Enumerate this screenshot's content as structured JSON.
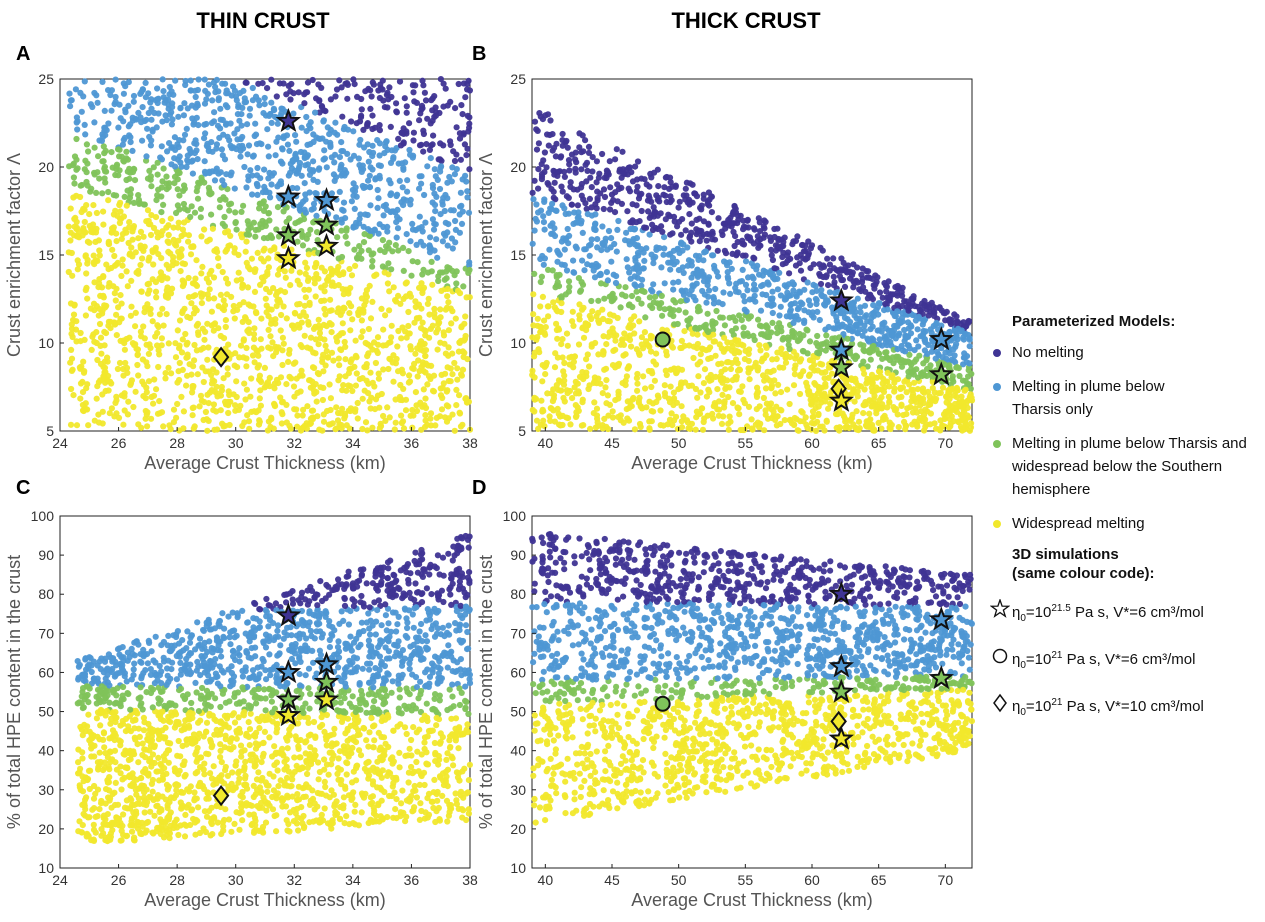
{
  "columns": {
    "left": "THIN CRUST",
    "right": "THICK CRUST"
  },
  "colors": {
    "no_melting": "#3f3494",
    "plume_only": "#4e97d4",
    "plume_and_south": "#7fc35a",
    "widespread": "#f1e82c"
  },
  "legend": {
    "models_title": "Parameterized Models:",
    "models": [
      {
        "label": "No melting",
        "color": "#3f3494"
      },
      {
        "label": "Melting in plume below Tharsis only",
        "color": "#4e97d4"
      },
      {
        "label": "Melting in plume below Tharsis and widespread below the Southern hemisphere",
        "color": "#7fc35a"
      },
      {
        "label": "Widespread melting",
        "color": "#f1e82c"
      }
    ],
    "sim_title_1": "3D simulations",
    "sim_title_2": "(same colour code):",
    "sims": [
      {
        "symbol": "star-icon",
        "eta_sub": "0",
        "eta_exp": "21.5",
        "rest": " Pa s, V*=6 cm³/mol"
      },
      {
        "symbol": "circle-icon",
        "eta_sub": "0",
        "eta_exp": "21",
        "rest": " Pa s, V*=6 cm³/mol"
      },
      {
        "symbol": "diamond-icon",
        "eta_sub": "0",
        "eta_exp": "21",
        "rest": " Pa s, V*=10 cm³/mol"
      }
    ]
  },
  "chart_data": [
    {
      "panel": "A",
      "type": "scatter",
      "xlabel": "Average Crust Thickness (km)",
      "ylabel": "Crust enrichment factor Λ",
      "xlim": [
        24,
        38
      ],
      "ylim": [
        5,
        25
      ],
      "xticks": [
        24,
        26,
        28,
        30,
        32,
        34,
        36,
        38
      ],
      "yticks": [
        5,
        10,
        15,
        20,
        25
      ],
      "regions": {
        "x_min": 24.3,
        "y_min": 5,
        "y_max": 25,
        "boundaries": [
          {
            "x": [
              24.3,
              38
            ],
            "y": [
              18.8,
              12.8
            ]
          },
          {
            "x": [
              24.3,
              38
            ],
            "y": [
              22,
              14.2
            ]
          },
          {
            "x": [
              29.8,
              38
            ],
            "y": [
              25,
              19.7
            ]
          }
        ]
      },
      "simulations": [
        {
          "symbol": "star",
          "class": "no_melting",
          "x": 31.8,
          "y": 22.6
        },
        {
          "symbol": "star",
          "class": "plume_only",
          "x": 31.8,
          "y": 18.3
        },
        {
          "symbol": "star",
          "class": "plume_only",
          "x": 33.1,
          "y": 18.1
        },
        {
          "symbol": "star",
          "class": "plume_and_south",
          "x": 33.1,
          "y": 16.7
        },
        {
          "symbol": "star",
          "class": "plume_and_south",
          "x": 31.8,
          "y": 16.1
        },
        {
          "symbol": "star",
          "class": "widespread",
          "x": 33.1,
          "y": 15.5
        },
        {
          "symbol": "star",
          "class": "widespread",
          "x": 31.8,
          "y": 14.8
        },
        {
          "symbol": "diamond",
          "class": "widespread",
          "x": 29.5,
          "y": 9.2
        }
      ]
    },
    {
      "panel": "B",
      "type": "scatter",
      "xlabel": "Average Crust Thickness (km)",
      "ylabel": "Crust enrichment factor Λ",
      "xlim": [
        39,
        72
      ],
      "ylim": [
        5,
        25
      ],
      "xticks": [
        40,
        45,
        50,
        55,
        60,
        65,
        70
      ],
      "yticks": [
        5,
        10,
        15,
        20,
        25
      ],
      "regions": {
        "x_min": 39,
        "y_min": 5,
        "y_max_line": {
          "x": [
            39,
            72
          ],
          "y": [
            23.5,
            11.2
          ]
        },
        "boundaries": [
          {
            "x": [
              39,
              72
            ],
            "y": [
              12.8,
              7.3
            ]
          },
          {
            "x": [
              39,
              72
            ],
            "y": [
              14.5,
              8.6
            ]
          },
          {
            "x": [
              39,
              72
            ],
            "y": [
              18.5,
              10.6
            ]
          }
        ]
      },
      "simulations": [
        {
          "symbol": "circle",
          "class": "plume_and_south",
          "x": 48.8,
          "y": 10.2
        },
        {
          "symbol": "star",
          "class": "no_melting",
          "x": 62.2,
          "y": 12.4
        },
        {
          "symbol": "star",
          "class": "plume_only",
          "x": 62.2,
          "y": 9.6
        },
        {
          "symbol": "star",
          "class": "plume_and_south",
          "x": 62.2,
          "y": 8.6
        },
        {
          "symbol": "diamond",
          "class": "widespread",
          "x": 62.0,
          "y": 7.4
        },
        {
          "symbol": "star",
          "class": "widespread",
          "x": 62.2,
          "y": 6.7
        },
        {
          "symbol": "star",
          "class": "plume_only",
          "x": 69.7,
          "y": 10.2
        },
        {
          "symbol": "star",
          "class": "plume_and_south",
          "x": 69.7,
          "y": 8.2
        }
      ]
    },
    {
      "panel": "C",
      "type": "scatter",
      "xlabel": "Average Crust Thickness (km)",
      "ylabel": "% of total HPE content in the crust",
      "xlim": [
        24,
        38
      ],
      "ylim": [
        10,
        100
      ],
      "xticks": [
        24,
        26,
        28,
        30,
        32,
        34,
        36,
        38
      ],
      "yticks": [
        10,
        20,
        30,
        40,
        50,
        60,
        70,
        80,
        90,
        100
      ],
      "regions": {
        "x_min": 24.6,
        "y_min_line": {
          "x": [
            24.6,
            38
          ],
          "y": [
            16,
            22
          ]
        },
        "y_max_line": {
          "x": [
            24.6,
            38
          ],
          "y": [
            63,
            96
          ]
        },
        "boundaries": [
          {
            "x": [
              24.6,
              38
            ],
            "y": [
              50.5,
              49
            ]
          },
          {
            "x": [
              24.6,
              38
            ],
            "y": [
              56.5,
              56
            ]
          },
          {
            "x": [
              24.6,
              38
            ],
            "y": [
              75,
              77
            ]
          }
        ]
      },
      "simulations": [
        {
          "symbol": "star",
          "class": "no_melting",
          "x": 31.8,
          "y": 74.5
        },
        {
          "symbol": "star",
          "class": "plume_only",
          "x": 31.8,
          "y": 60
        },
        {
          "symbol": "star",
          "class": "plume_only",
          "x": 33.1,
          "y": 62
        },
        {
          "symbol": "star",
          "class": "plume_and_south",
          "x": 33.1,
          "y": 57.5
        },
        {
          "symbol": "star",
          "class": "plume_and_south",
          "x": 31.8,
          "y": 53
        },
        {
          "symbol": "star",
          "class": "widespread",
          "x": 33.1,
          "y": 53
        },
        {
          "symbol": "star",
          "class": "widespread",
          "x": 31.8,
          "y": 49
        },
        {
          "symbol": "diamond",
          "class": "widespread",
          "x": 29.5,
          "y": 28.5
        }
      ]
    },
    {
      "panel": "D",
      "type": "scatter",
      "xlabel": "Average Crust Thickness (km)",
      "ylabel": "% of total HPE content in the crust",
      "xlim": [
        39,
        72
      ],
      "ylim": [
        10,
        100
      ],
      "xticks": [
        40,
        45,
        50,
        55,
        60,
        65,
        70
      ],
      "yticks": [
        10,
        20,
        30,
        40,
        50,
        60,
        70,
        80,
        90,
        100
      ],
      "regions": {
        "x_min": 39,
        "y_min_line": {
          "x": [
            39,
            72
          ],
          "y": [
            21,
            40
          ]
        },
        "y_max_line": {
          "x": [
            39,
            72
          ],
          "y": [
            96,
            85
          ]
        },
        "boundaries": [
          {
            "x": [
              39,
              72
            ],
            "y": [
              52,
              56
            ]
          },
          {
            "x": [
              39,
              72
            ],
            "y": [
              58,
              59
            ]
          },
          {
            "x": [
              39,
              72
            ],
            "y": [
              78,
              77
            ]
          }
        ]
      },
      "simulations": [
        {
          "symbol": "circle",
          "class": "plume_and_south",
          "x": 48.8,
          "y": 52
        },
        {
          "symbol": "star",
          "class": "no_melting",
          "x": 62.2,
          "y": 80
        },
        {
          "symbol": "star",
          "class": "plume_only",
          "x": 62.2,
          "y": 61.5
        },
        {
          "symbol": "star",
          "class": "plume_and_south",
          "x": 62.2,
          "y": 55
        },
        {
          "symbol": "diamond",
          "class": "widespread",
          "x": 62.0,
          "y": 47.5
        },
        {
          "symbol": "star",
          "class": "widespread",
          "x": 62.2,
          "y": 43
        },
        {
          "symbol": "star",
          "class": "plume_only",
          "x": 69.7,
          "y": 73.5
        },
        {
          "symbol": "star",
          "class": "plume_and_south",
          "x": 69.7,
          "y": 58.5
        }
      ]
    }
  ]
}
